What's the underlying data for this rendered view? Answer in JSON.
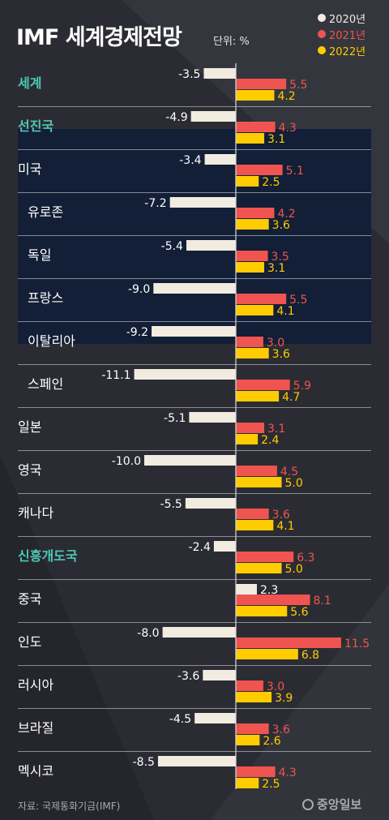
{
  "title": "IMF 세계경제전망",
  "unit": "단위: %",
  "source": "자료: 국제통화기금(IMF)",
  "logo": "중앙일보",
  "legend": [
    {
      "label": "2020년",
      "color": "#f2ebe0"
    },
    {
      "label": "2021년",
      "color": "#f05450"
    },
    {
      "label": "2022년",
      "color": "#ffcc00"
    }
  ],
  "colors": {
    "accent": "#4cc7b5",
    "highlight_band": "#121f36",
    "divider": "#cfcfd4"
  },
  "chart_data": {
    "type": "bar",
    "orientation": "horizontal",
    "categories": [
      "세계",
      "선진국",
      "미국",
      "유로존",
      "독일",
      "프랑스",
      "이탈리아",
      "스페인",
      "일본",
      "영국",
      "캐나다",
      "신흥개도국",
      "중국",
      "인도",
      "러시아",
      "브라질",
      "멕시코"
    ],
    "group_headers": [
      "세계",
      "선진국",
      "신흥개도국"
    ],
    "highlighted": [
      "유로존",
      "독일",
      "프랑스",
      "이탈리아",
      "스페인"
    ],
    "series": [
      {
        "name": "2020년",
        "values": [
          -3.5,
          -4.9,
          -3.4,
          -7.2,
          -5.4,
          -9.0,
          -9.2,
          -11.1,
          -5.1,
          -10.0,
          -5.5,
          -2.4,
          2.3,
          -8.0,
          -3.6,
          -4.5,
          -8.5
        ]
      },
      {
        "name": "2021년",
        "values": [
          5.5,
          4.3,
          5.1,
          4.2,
          3.5,
          5.5,
          3.0,
          5.9,
          3.1,
          4.5,
          3.6,
          6.3,
          8.1,
          11.5,
          3.0,
          3.6,
          4.3
        ]
      },
      {
        "name": "2022년",
        "values": [
          4.2,
          3.1,
          2.5,
          3.6,
          3.1,
          4.1,
          3.6,
          4.7,
          2.4,
          5.0,
          4.1,
          5.0,
          5.6,
          6.8,
          3.9,
          2.6,
          2.5
        ]
      }
    ],
    "labels": [
      [
        "-3.5",
        "5.5",
        "4.2"
      ],
      [
        "-4.9",
        "4.3",
        "3.1"
      ],
      [
        "-3.4",
        "5.1",
        "2.5"
      ],
      [
        "-7.2",
        "4.2",
        "3.6"
      ],
      [
        "-5.4",
        "3.5",
        "3.1"
      ],
      [
        "-9.0",
        "5.5",
        "4.1"
      ],
      [
        "-9.2",
        "3.0",
        "3.6"
      ],
      [
        "-11.1",
        "5.9",
        "4.7"
      ],
      [
        "-5.1",
        "3.1",
        "2.4"
      ],
      [
        "-10.0",
        "4.5",
        "5.0"
      ],
      [
        "-5.5",
        "3.6",
        "4.1"
      ],
      [
        "-2.4",
        "6.3",
        "5.0"
      ],
      [
        "2.3",
        "8.1",
        "5.6"
      ],
      [
        "-8.0",
        "11.5",
        "6.8"
      ],
      [
        "-3.6",
        "3.0",
        "3.9"
      ],
      [
        "-4.5",
        "3.6",
        "2.6"
      ],
      [
        "-8.5",
        "4.3",
        "2.5"
      ]
    ]
  }
}
